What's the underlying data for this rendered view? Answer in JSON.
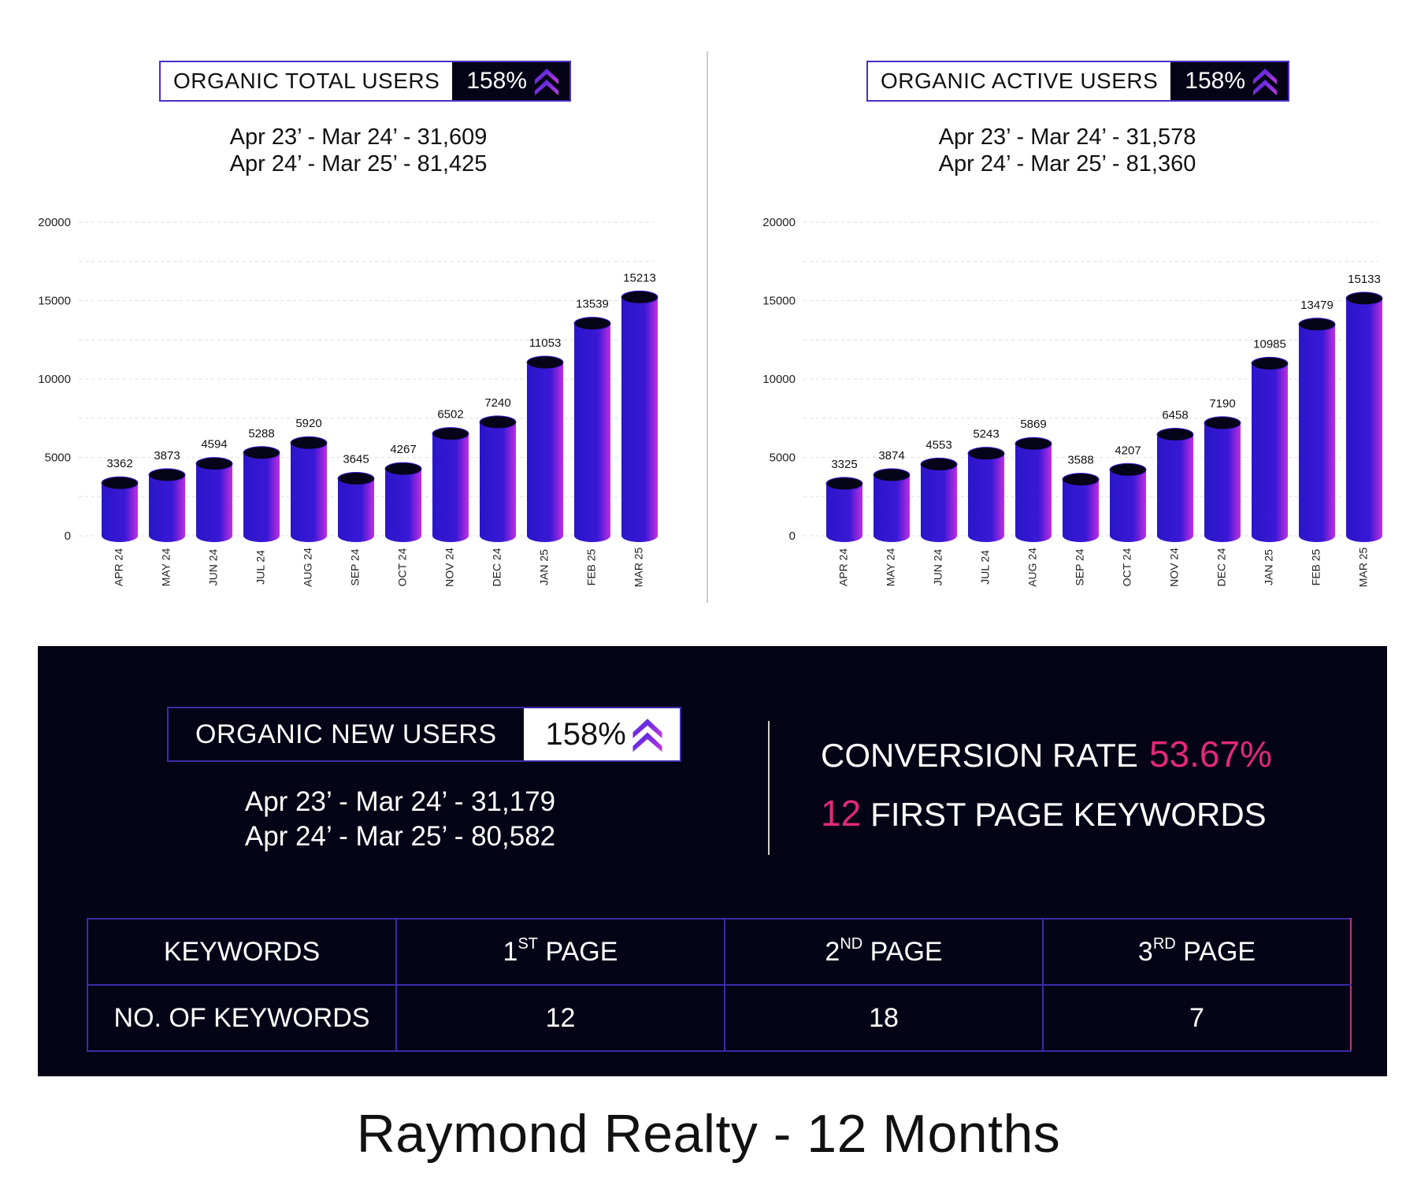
{
  "left_panel": {
    "badge_label": "ORGANIC TOTAL USERS",
    "badge_pct": "158%",
    "period_1": "Apr 23’ - Mar 24’ - 31,609",
    "period_2": "Apr 24’ - Mar 25’ - 81,425"
  },
  "right_panel": {
    "badge_label": "ORGANIC ACTIVE USERS",
    "badge_pct": "158%",
    "period_1": "Apr 23’ - Mar 24’ - 31,578",
    "period_2": "Apr 24’ - Mar 25’ - 81,360"
  },
  "new_users": {
    "badge_label": "ORGANIC NEW USERS",
    "badge_pct": "158%",
    "period_1": "Apr 23’ - Mar 24’ - 31,179",
    "period_2": "Apr 24’ - Mar 25’ - 80,582"
  },
  "conversion": {
    "label": "CONVERSION RATE",
    "value": "53.67%"
  },
  "first_page": {
    "count": "12",
    "label": "FIRST PAGE KEYWORDS"
  },
  "keyword_table": {
    "header": {
      "c0": "KEYWORDS",
      "c1_num": "1",
      "c1_sup": "ST",
      "c1_txt": " PAGE",
      "c2_num": "2",
      "c2_sup": "ND",
      "c2_txt": " PAGE",
      "c3_num": "3",
      "c3_sup": "RD",
      "c3_txt": " PAGE"
    },
    "row": {
      "label": "NO. OF KEYWORDS",
      "v1": "12",
      "v2": "18",
      "v3": "7"
    }
  },
  "footer_title": "Raymond Realty - 12 Months",
  "colors": {
    "bar_start": "#2a16c9",
    "bar_end": "#c12ee0",
    "accent_pink": "#e3297a",
    "dark_bg": "#050416"
  },
  "chart_data": [
    {
      "type": "bar",
      "categories": [
        "APR 24",
        "MAY 24",
        "JUN 24",
        "JUL 24",
        "AUG 24",
        "SEP 24",
        "OCT 24",
        "NOV 24",
        "DEC 24",
        "JAN 25",
        "FEB 25",
        "MAR 25"
      ],
      "values": [
        3362,
        3873,
        4594,
        5288,
        5920,
        3645,
        4267,
        6502,
        7240,
        11053,
        13539,
        15213
      ],
      "yticks": [
        0,
        5000,
        10000,
        15000,
        20000
      ],
      "ylim": [
        0,
        20000
      ],
      "grid": true
    },
    {
      "type": "bar",
      "categories": [
        "APR 24",
        "MAY 24",
        "JUN 24",
        "JUL 24",
        "AUG 24",
        "SEP 24",
        "OCT 24",
        "NOV 24",
        "DEC 24",
        "JAN 25",
        "FEB 25",
        "MAR 25"
      ],
      "values": [
        3325,
        3874,
        4553,
        5243,
        5869,
        3588,
        4207,
        6458,
        7190,
        10985,
        13479,
        15133
      ],
      "yticks": [
        0,
        5000,
        10000,
        15000,
        20000
      ],
      "ylim": [
        0,
        20000
      ],
      "grid": true
    }
  ]
}
